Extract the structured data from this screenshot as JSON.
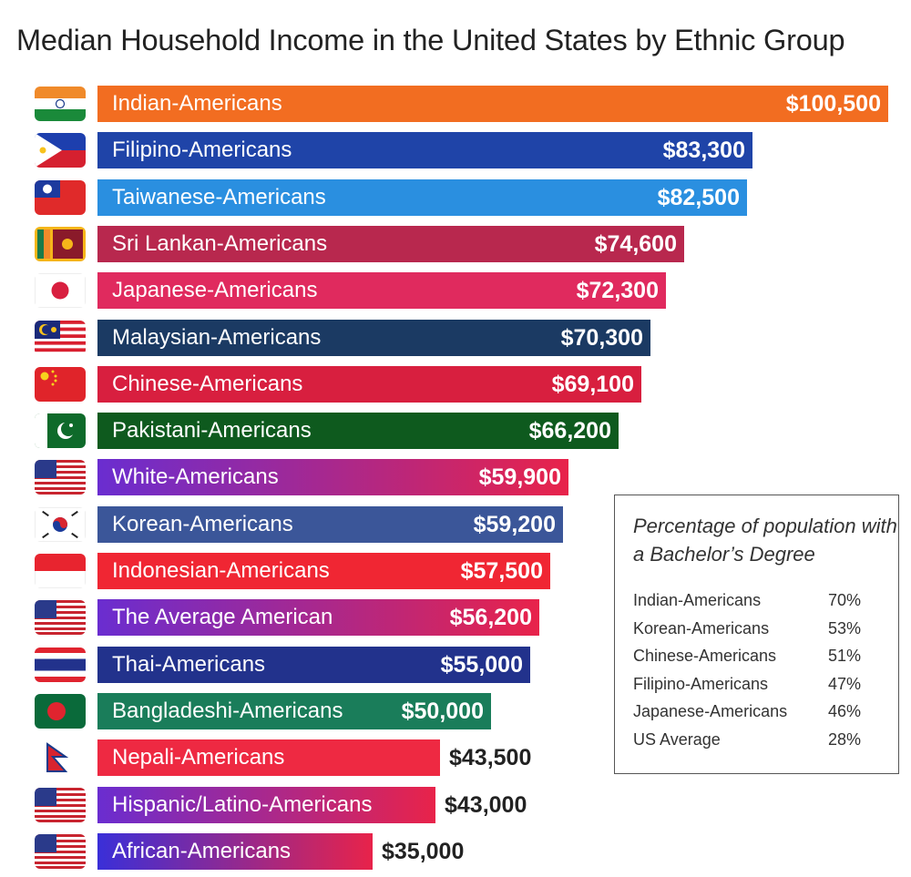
{
  "chart_data": {
    "type": "bar",
    "orientation": "horizontal",
    "title": "Median Household Income in the United States  by Ethnic Group",
    "xlim": [
      0,
      100500
    ],
    "grid": false,
    "legend": "none",
    "bars": [
      {
        "category": "Indian-Americans",
        "value": 100500,
        "value_label": "$100,500",
        "flag": "india-flag-icon",
        "color": "#f26d21"
      },
      {
        "category": "Filipino-Americans",
        "value": 83300,
        "value_label": "$83,300",
        "flag": "philippines-flag-icon",
        "color": "#1f44a8"
      },
      {
        "category": "Taiwanese-Americans",
        "value": 82500,
        "value_label": "$82,500",
        "flag": "taiwan-flag-icon",
        "color": "#2a8fe0"
      },
      {
        "category": "Sri Lankan-Americans",
        "value": 74600,
        "value_label": "$74,600",
        "flag": "sri-lanka-flag-icon",
        "color": "#b8284e"
      },
      {
        "category": "Japanese-Americans",
        "value": 72300,
        "value_label": "$72,300",
        "flag": "japan-flag-icon",
        "color": "#e02a5e"
      },
      {
        "category": "Malaysian-Americans",
        "value": 70300,
        "value_label": "$70,300",
        "flag": "malaysia-flag-icon",
        "color": "#1b3a63"
      },
      {
        "category": "Chinese-Americans",
        "value": 69100,
        "value_label": "$69,100",
        "flag": "china-flag-icon",
        "color": "#d81f3f"
      },
      {
        "category": "Pakistani-Americans",
        "value": 66200,
        "value_label": "$66,200",
        "flag": "pakistan-flag-icon",
        "color": "#0e5a1e"
      },
      {
        "category": "White-Americans",
        "value": 59900,
        "value_label": "$59,900",
        "flag": "usa-flag-icon",
        "color": "#6a2dd0",
        "color_end": "#e8234a"
      },
      {
        "category": "Korean-Americans",
        "value": 59200,
        "value_label": "$59,200",
        "flag": "south-korea-flag-icon",
        "color": "#3b5699"
      },
      {
        "category": "Indonesian-Americans",
        "value": 57500,
        "value_label": "$57,500",
        "flag": "indonesia-flag-icon",
        "color": "#f02633"
      },
      {
        "category": "The Average American",
        "value": 56200,
        "value_label": "$56,200",
        "flag": "usa-flag-icon",
        "color": "#6a2dd0",
        "color_end": "#e8234a"
      },
      {
        "category": "Thai-Americans",
        "value": 55000,
        "value_label": "$55,000",
        "flag": "thailand-flag-icon",
        "color": "#22328c"
      },
      {
        "category": "Bangladeshi-Americans",
        "value": 50000,
        "value_label": "$50,000",
        "flag": "bangladesh-flag-icon",
        "color": "#1a7d5a"
      },
      {
        "category": "Nepali-Americans",
        "value": 43500,
        "value_label": "$43,500",
        "flag": "nepal-flag-icon",
        "color": "#ee2942"
      },
      {
        "category": "Hispanic/Latino-Americans",
        "value": 43000,
        "value_label": "$43,000",
        "flag": "usa-flag-icon",
        "color": "#6a2dd0",
        "color_end": "#e8234a"
      },
      {
        "category": "African-Americans",
        "value": 35000,
        "value_label": "$35,000",
        "flag": "usa-flag-icon",
        "color": "#3a2fd8",
        "color_end": "#e8234a"
      }
    ],
    "inset_table": {
      "title": "Percentage of population with a Bachelor’s Degree",
      "rows": [
        {
          "name": "Indian-Americans",
          "value": "70%"
        },
        {
          "name": "Korean-Americans",
          "value": "53%"
        },
        {
          "name": "Chinese-Americans",
          "value": "51%"
        },
        {
          "name": "Filipino-Americans",
          "value": "47%"
        },
        {
          "name": "Japanese-Americans",
          "value": "46%"
        },
        {
          "name": "US Average",
          "value": "28%"
        }
      ]
    }
  }
}
